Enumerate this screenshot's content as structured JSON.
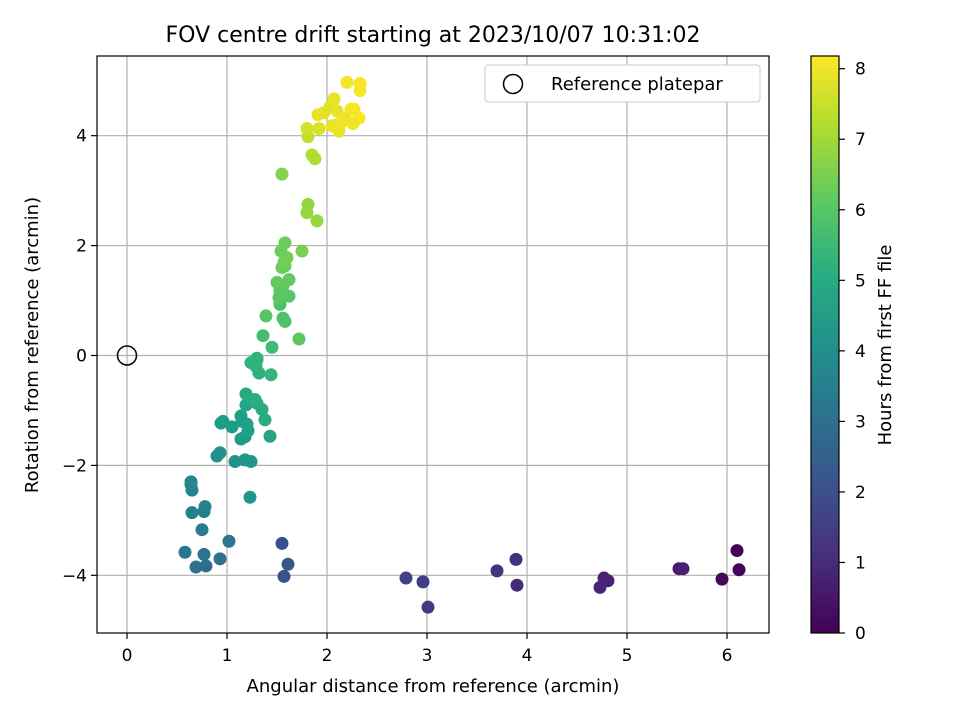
{
  "chart_data": {
    "type": "scatter",
    "title": "FOV centre drift starting at 2023/10/07 10:31:02",
    "xlabel": "Angular distance from reference (arcmin)",
    "ylabel": "Rotation from reference (arcmin)",
    "xlim": [
      -0.3,
      6.42
    ],
    "ylim": [
      -5.05,
      5.45
    ],
    "xticks": [
      0,
      1,
      2,
      3,
      4,
      5,
      6
    ],
    "xtick_labels": [
      "0",
      "1",
      "2",
      "3",
      "4",
      "5",
      "6"
    ],
    "yticks": [
      -4,
      -2,
      0,
      2,
      4
    ],
    "ytick_labels": [
      "−4",
      "−2",
      "0",
      "2",
      "4"
    ],
    "grid": true,
    "legend": {
      "placement": "top-right",
      "entries": [
        "Reference platepar"
      ]
    },
    "reference_point": {
      "x": 0,
      "y": 0,
      "label": "Reference platepar"
    },
    "colorbar": {
      "label": "Hours from first FF file",
      "range": [
        0,
        8.18
      ],
      "ticks": [
        0,
        1,
        2,
        3,
        4,
        5,
        6,
        7,
        8
      ],
      "tick_labels": [
        "0",
        "1",
        "2",
        "3",
        "4",
        "5",
        "6",
        "7",
        "8"
      ],
      "colormap": "viridis"
    },
    "series": [
      {
        "x": [
          6.1,
          6.12,
          5.95,
          5.52,
          5.56,
          4.81,
          4.77,
          4.73,
          3.89,
          3.9,
          3.7,
          3.01,
          2.96,
          2.79,
          1.55,
          1.57,
          1.61,
          0.58,
          0.69,
          0.79,
          0.77,
          0.93,
          1.02,
          0.75,
          0.77,
          0.78,
          0.65,
          0.65,
          0.64,
          0.64,
          0.9,
          0.93,
          1.08,
          1.18,
          1.24,
          1.23,
          0.94,
          0.96,
          1.05,
          1.14,
          1.14,
          1.18,
          1.21,
          1.2,
          1.15,
          1.19,
          1.3,
          1.35,
          1.38,
          1.43,
          1.19,
          1.28,
          1.3,
          1.29,
          1.24,
          1.32,
          1.3,
          1.44,
          1.36,
          1.45,
          1.39,
          1.58,
          1.56,
          1.53,
          1.72,
          1.62,
          1.52,
          1.53,
          1.56,
          1.5,
          1.55,
          1.58,
          1.62,
          1.53,
          1.57,
          1.6,
          1.54,
          1.58,
          1.75,
          1.55,
          1.81,
          1.8,
          1.9,
          1.85,
          1.88,
          1.81,
          1.8,
          1.92,
          1.97,
          2.03,
          2.07,
          2.1,
          2.12,
          2.15,
          2.2,
          2.24,
          2.27,
          2.32,
          2.1,
          2.18,
          2.26,
          2.33,
          2.33,
          2.05,
          1.91
        ],
        "y": [
          -3.55,
          -3.9,
          -4.07,
          -3.88,
          -3.88,
          -4.1,
          -4.05,
          -4.22,
          -3.71,
          -4.18,
          -3.92,
          -4.58,
          -4.12,
          -4.05,
          -3.42,
          -4.02,
          -3.8,
          -3.58,
          -3.85,
          -3.83,
          -3.62,
          -3.7,
          -3.38,
          -3.17,
          -2.84,
          -2.75,
          -2.86,
          -2.45,
          -2.35,
          -2.3,
          -1.83,
          -1.77,
          -1.93,
          -1.9,
          -1.93,
          -2.58,
          -1.23,
          -1.2,
          -1.3,
          -1.1,
          -1.52,
          -1.48,
          -1.37,
          -1.25,
          -1.2,
          -0.9,
          -0.87,
          -0.98,
          -1.17,
          -1.47,
          -0.7,
          -0.8,
          -0.08,
          -0.2,
          -0.13,
          -0.32,
          -0.05,
          -0.35,
          0.36,
          0.15,
          0.72,
          0.62,
          0.68,
          0.93,
          0.3,
          1.08,
          1.05,
          1.2,
          1.27,
          1.33,
          1.6,
          1.63,
          1.38,
          1.15,
          1.7,
          1.78,
          1.9,
          2.05,
          1.9,
          3.3,
          2.75,
          2.6,
          2.45,
          3.65,
          3.58,
          3.98,
          4.13,
          4.13,
          4.42,
          4.52,
          4.67,
          4.45,
          4.08,
          4.25,
          4.97,
          4.48,
          4.48,
          4.32,
          4.2,
          4.32,
          4.22,
          4.95,
          4.82,
          4.18,
          4.38
        ],
        "hours": [
          0.05,
          0.1,
          0.15,
          0.6,
          0.7,
          0.75,
          0.8,
          0.85,
          1.1,
          1.0,
          1.2,
          1.4,
          1.5,
          1.6,
          2.0,
          2.1,
          2.2,
          3.2,
          3.0,
          2.9,
          3.1,
          3.0,
          3.2,
          3.4,
          3.5,
          3.6,
          3.6,
          3.7,
          3.8,
          3.8,
          4.1,
          4.1,
          4.2,
          4.2,
          4.3,
          4.3,
          4.5,
          4.5,
          4.5,
          4.6,
          4.4,
          4.5,
          4.6,
          4.7,
          4.6,
          4.8,
          4.9,
          5.0,
          5.0,
          4.8,
          4.9,
          5.1,
          5.3,
          5.4,
          5.3,
          5.2,
          5.3,
          5.4,
          5.7,
          5.6,
          6.0,
          5.9,
          5.9,
          5.8,
          6.1,
          6.0,
          6.1,
          6.1,
          6.2,
          6.2,
          6.3,
          6.3,
          6.2,
          6.1,
          6.4,
          6.4,
          6.3,
          6.3,
          6.5,
          6.6,
          6.8,
          6.9,
          6.9,
          7.2,
          7.2,
          7.4,
          7.6,
          7.7,
          7.8,
          7.8,
          7.9,
          7.9,
          7.9,
          8.0,
          8.1,
          8.1,
          8.1,
          8.1,
          8.0,
          8.0,
          8.0,
          8.1,
          8.1,
          7.9,
          7.9
        ]
      }
    ]
  }
}
